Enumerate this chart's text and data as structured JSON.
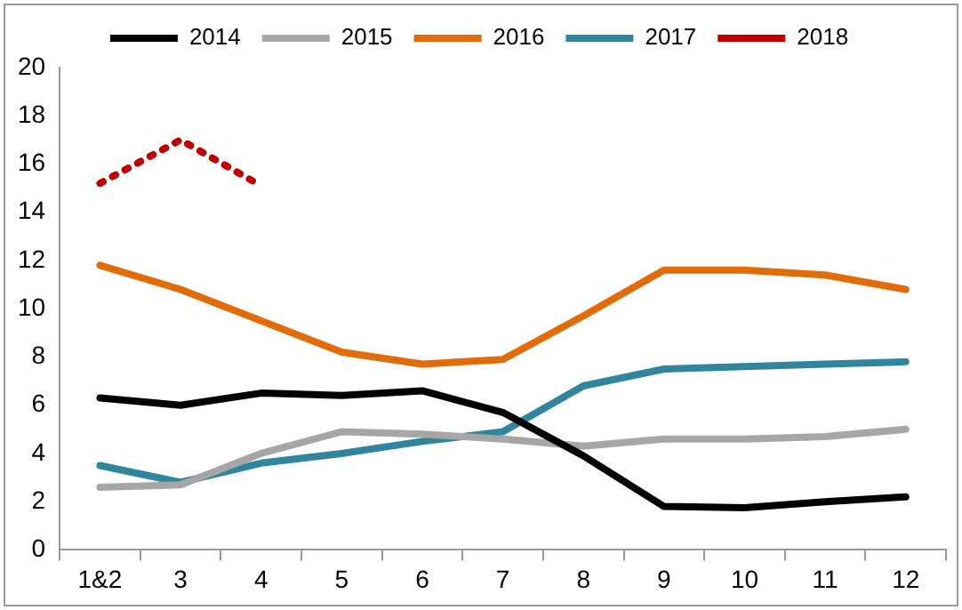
{
  "chart_data": {
    "type": "line",
    "categories": [
      "1&2",
      "3",
      "4",
      "5",
      "6",
      "7",
      "8",
      "9",
      "10",
      "11",
      "12"
    ],
    "series": [
      {
        "name": "2014",
        "color": "#000000",
        "values": [
          6.3,
          6.0,
          6.5,
          6.4,
          6.6,
          5.7,
          3.9,
          1.8,
          1.75,
          2.0,
          2.2
        ]
      },
      {
        "name": "2015",
        "color": "#a6a6a6",
        "values": [
          2.6,
          2.7,
          4.0,
          4.9,
          4.8,
          4.6,
          4.3,
          4.6,
          4.6,
          4.7,
          5.0
        ]
      },
      {
        "name": "2016",
        "color": "#e36c0a",
        "values": [
          11.8,
          10.8,
          9.5,
          8.2,
          7.7,
          7.9,
          9.7,
          11.6,
          11.6,
          11.4,
          10.8
        ]
      },
      {
        "name": "2017",
        "color": "#31859c",
        "values": [
          3.5,
          2.8,
          3.6,
          4.0,
          4.5,
          4.9,
          6.8,
          7.5,
          7.6,
          7.7,
          7.8
        ]
      },
      {
        "name": "2018",
        "color": "#c00000",
        "line_style": "dotted",
        "values": [
          15.2,
          17.0,
          15.1,
          null,
          null,
          null,
          null,
          null,
          null,
          null,
          null
        ]
      }
    ],
    "ylim": [
      0,
      20
    ],
    "yticks": [
      0,
      2,
      4,
      6,
      8,
      10,
      12,
      14,
      16,
      18,
      20
    ],
    "grid": false,
    "legend": "top",
    "marker": "none",
    "line_style": "solid"
  }
}
